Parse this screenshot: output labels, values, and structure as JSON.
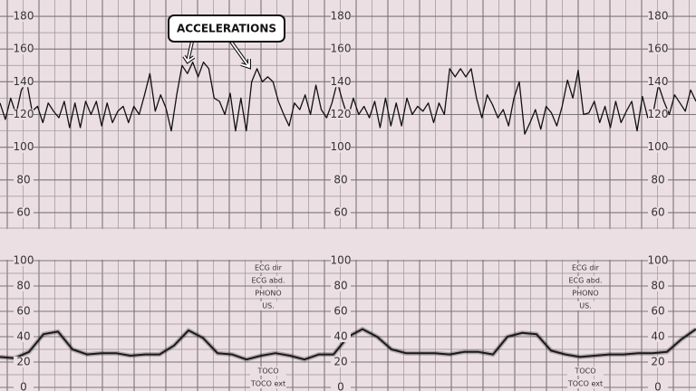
{
  "chart_data": [
    {
      "type": "line",
      "annotation": "ACCELERATIONS",
      "color": "#111111",
      "ylim": [
        50,
        190
      ],
      "yticks": [
        60,
        80,
        100,
        120,
        140,
        160,
        180
      ],
      "grid": true,
      "values": [
        127,
        117,
        130,
        120,
        135,
        140,
        122,
        125,
        115,
        127,
        122,
        118,
        128,
        112,
        127,
        112,
        128,
        120,
        128,
        113,
        127,
        115,
        122,
        125,
        115,
        125,
        120,
        132,
        145,
        122,
        132,
        124,
        110,
        132,
        150,
        145,
        152,
        143,
        152,
        148,
        130,
        128,
        120,
        133,
        110,
        130,
        110,
        140,
        148,
        140,
        143,
        140,
        128,
        120,
        113,
        127,
        123,
        132,
        120,
        138,
        123,
        118,
        127,
        140,
        128,
        118,
        130,
        120,
        125,
        118,
        128,
        112,
        130,
        113,
        127,
        113,
        130,
        120,
        125,
        122,
        127,
        115,
        127,
        120,
        148,
        143,
        148,
        143,
        148,
        130,
        118,
        132,
        126,
        118,
        123,
        113,
        130,
        140,
        108,
        115,
        123,
        111,
        125,
        121,
        113,
        125,
        141,
        130,
        147,
        120,
        121,
        128,
        115,
        125,
        112,
        128,
        115,
        122,
        128,
        110,
        131,
        118,
        121,
        138,
        128,
        120,
        132,
        127,
        122,
        135,
        128
      ]
    },
    {
      "type": "line",
      "color": "#1a1a1a",
      "ylim": [
        0,
        100
      ],
      "yticks": [
        0,
        20,
        40,
        60,
        80,
        100
      ],
      "grid": true,
      "annotations": [
        "ECG dir",
        "ECG abd.",
        "PHONO",
        "US.",
        "TOCO",
        "TOCO ext"
      ],
      "values": [
        24,
        23,
        28,
        42,
        44,
        30,
        26,
        27,
        27,
        25,
        26,
        26,
        33,
        45,
        39,
        27,
        26,
        22,
        25,
        27,
        25,
        22,
        26,
        26,
        40,
        46,
        40,
        30,
        27,
        27,
        27,
        26,
        28,
        28,
        26,
        40,
        43,
        42,
        29,
        26,
        24,
        25,
        26,
        26,
        27,
        27,
        28,
        38,
        46
      ]
    }
  ]
}
